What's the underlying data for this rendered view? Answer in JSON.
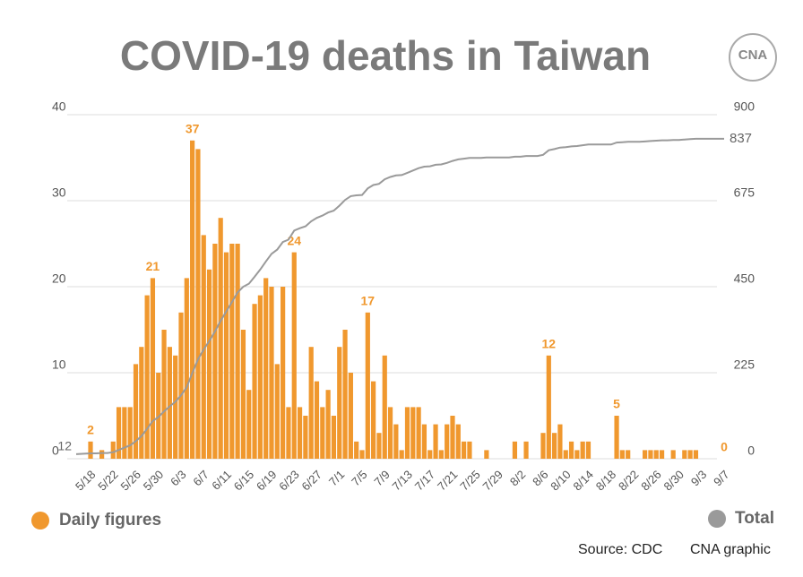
{
  "chart_data": {
    "type": "bar-line",
    "title": "COVID-19 deaths in Taiwan",
    "logo": "CNA",
    "source": "Source: CDC",
    "credit": "CNA graphic",
    "categories": [
      "5/18",
      null,
      null,
      null,
      "5/22",
      null,
      null,
      null,
      "5/26",
      null,
      null,
      null,
      "5/30",
      null,
      null,
      null,
      "6/3",
      null,
      null,
      null,
      "6/7",
      null,
      null,
      null,
      "6/11",
      null,
      null,
      null,
      "6/15",
      null,
      null,
      null,
      "6/19",
      null,
      null,
      null,
      "6/23",
      null,
      null,
      null,
      "6/27",
      null,
      null,
      null,
      "7/1",
      null,
      null,
      null,
      "7/5",
      null,
      null,
      null,
      "7/9",
      null,
      null,
      null,
      "7/13",
      null,
      null,
      null,
      "7/17",
      null,
      null,
      null,
      "7/21",
      null,
      null,
      null,
      "7/25",
      null,
      null,
      null,
      "7/29",
      null,
      null,
      null,
      "8/2",
      null,
      null,
      null,
      "8/6",
      null,
      null,
      null,
      "8/10",
      null,
      null,
      null,
      "8/14",
      null,
      null,
      null,
      "8/18",
      null,
      null,
      null,
      "8/22",
      null,
      null,
      null,
      "8/26",
      null,
      null,
      null,
      "8/30",
      null,
      null,
      null,
      "9/3",
      null,
      null,
      null,
      "9/7"
    ],
    "series": [
      {
        "name": "Daily figures",
        "color": "#f0982e",
        "kind": "bar",
        "values": [
          2,
          0,
          1,
          0,
          2,
          6,
          6,
          6,
          11,
          13,
          19,
          21,
          10,
          15,
          13,
          12,
          17,
          21,
          37,
          36,
          26,
          22,
          25,
          28,
          24,
          25,
          25,
          15,
          8,
          18,
          19,
          21,
          20,
          11,
          20,
          6,
          24,
          6,
          5,
          13,
          9,
          6,
          8,
          5,
          13,
          15,
          10,
          2,
          1,
          17,
          9,
          3,
          12,
          6,
          4,
          1,
          6,
          6,
          6,
          4,
          1,
          4,
          1,
          4,
          5,
          4,
          2,
          2,
          0,
          0,
          1,
          0,
          0,
          0,
          0,
          2,
          0,
          2,
          0,
          0,
          3,
          12,
          3,
          4,
          1,
          2,
          1,
          2,
          2,
          0,
          0,
          0,
          0,
          5,
          1,
          1,
          0,
          0,
          1,
          1,
          1,
          1,
          0,
          1,
          0,
          1,
          1,
          1,
          0,
          0,
          0,
          0,
          0
        ],
        "value_labels": [
          2,
          null,
          null,
          null,
          null,
          null,
          null,
          null,
          null,
          null,
          null,
          21,
          null,
          null,
          null,
          null,
          null,
          null,
          37,
          null,
          null,
          null,
          null,
          null,
          null,
          null,
          null,
          null,
          null,
          null,
          null,
          null,
          null,
          null,
          null,
          null,
          24,
          null,
          null,
          null,
          null,
          null,
          null,
          null,
          null,
          null,
          null,
          null,
          null,
          17,
          null,
          null,
          null,
          null,
          null,
          null,
          null,
          null,
          null,
          null,
          null,
          null,
          null,
          null,
          null,
          null,
          null,
          null,
          null,
          null,
          null,
          null,
          null,
          null,
          null,
          null,
          null,
          null,
          null,
          null,
          null,
          12,
          null,
          null,
          null,
          null,
          null,
          null,
          null,
          null,
          null,
          null,
          null,
          5,
          null,
          null,
          null,
          null,
          null,
          null,
          null,
          null,
          null,
          null,
          null,
          null,
          null,
          null,
          null,
          null,
          null,
          null,
          0
        ]
      },
      {
        "name": "Total",
        "color": "#9a9a9a",
        "kind": "line",
        "axis": "y2",
        "values": [
          14,
          14,
          15,
          15,
          17,
          23,
          29,
          35,
          46,
          59,
          78,
          99,
          109,
          124,
          137,
          149,
          166,
          187,
          224,
          260,
          286,
          308,
          333,
          361,
          385,
          410,
          435,
          450,
          458,
          476,
          495,
          516,
          536,
          547,
          567,
          573,
          597,
          603,
          608,
          621,
          630,
          636,
          644,
          649,
          662,
          677,
          687,
          689,
          690,
          707,
          716,
          719,
          731,
          737,
          741,
          742,
          748,
          754,
          760,
          764,
          765,
          769,
          770,
          774,
          779,
          783,
          785,
          787,
          787,
          787,
          788,
          788,
          788,
          788,
          788,
          790,
          790,
          792,
          792,
          792,
          795,
          807,
          810,
          814,
          815,
          817,
          818,
          820,
          822,
          822,
          822,
          822,
          822,
          827,
          828,
          829,
          829,
          829,
          830,
          831,
          832,
          833,
          833,
          834,
          834,
          835,
          836,
          837,
          837,
          837,
          837,
          837,
          837
        ],
        "value_labels": [
          null,
          null,
          null,
          null,
          null,
          null,
          null,
          null,
          null,
          null,
          null,
          null,
          null,
          null,
          null,
          null,
          null,
          null,
          null,
          null,
          null,
          null,
          null,
          null,
          null,
          null,
          null,
          null,
          null,
          null,
          null,
          null,
          null,
          null,
          null,
          null,
          null,
          null,
          null,
          null,
          null,
          null,
          null,
          null,
          null,
          null,
          null,
          null,
          null,
          null,
          null,
          null,
          null,
          null,
          null,
          null,
          null,
          null,
          null,
          null,
          null,
          null,
          null,
          null,
          null,
          null,
          null,
          null,
          null,
          null,
          null,
          null,
          null,
          null,
          null,
          null,
          null,
          null,
          null,
          null,
          null,
          null,
          null,
          null,
          null,
          null,
          null,
          null,
          null,
          null,
          null,
          null,
          null,
          null,
          null,
          null,
          null,
          null,
          null,
          null,
          null,
          null,
          null,
          null,
          null,
          null,
          null,
          null,
          null,
          null,
          null,
          null,
          837
        ]
      }
    ],
    "total_start": 12,
    "ylim": [
      0,
      40
    ],
    "yticks": [
      0,
      10,
      20,
      30,
      40
    ],
    "y2lim": [
      0,
      900
    ],
    "y2ticks": [
      0,
      225,
      450,
      675,
      900
    ],
    "grid": true
  }
}
